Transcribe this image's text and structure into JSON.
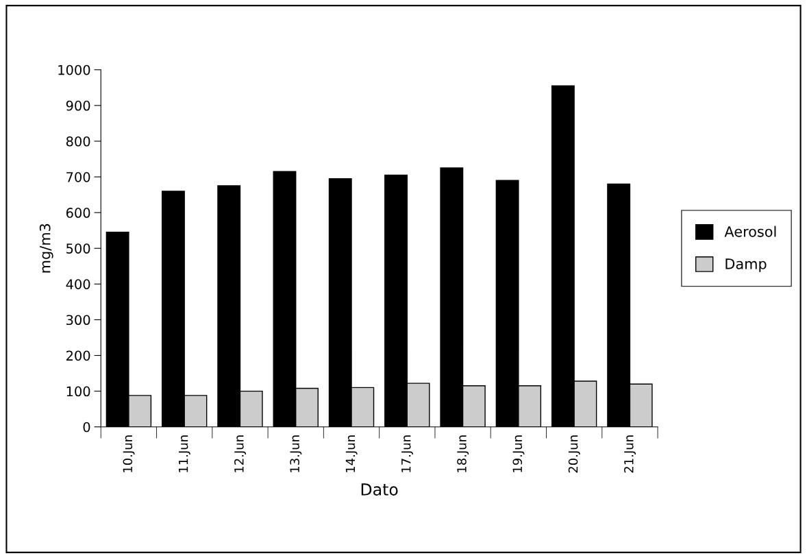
{
  "chart_data": {
    "type": "bar",
    "xlabel": "Dato",
    "ylabel": "mg/m3",
    "categories": [
      "10.Jun",
      "11.Jun",
      "12.Jun",
      "13.Jun",
      "14.Jun",
      "17.Jun",
      "18.Jun",
      "19.Jun",
      "20.Jun",
      "21.Jun"
    ],
    "series": [
      {
        "name": "Aerosol",
        "color": "#000000",
        "values": [
          545,
          660,
          675,
          715,
          695,
          705,
          725,
          690,
          955,
          680
        ]
      },
      {
        "name": "Damp",
        "color": "#cccccc",
        "values": [
          88,
          88,
          100,
          108,
          110,
          122,
          115,
          115,
          128,
          120
        ]
      }
    ],
    "ylim": [
      0,
      1000
    ],
    "yticks": [
      0,
      100,
      200,
      300,
      400,
      500,
      600,
      700,
      800,
      900,
      1000
    ],
    "grid": false,
    "legend": "right"
  }
}
